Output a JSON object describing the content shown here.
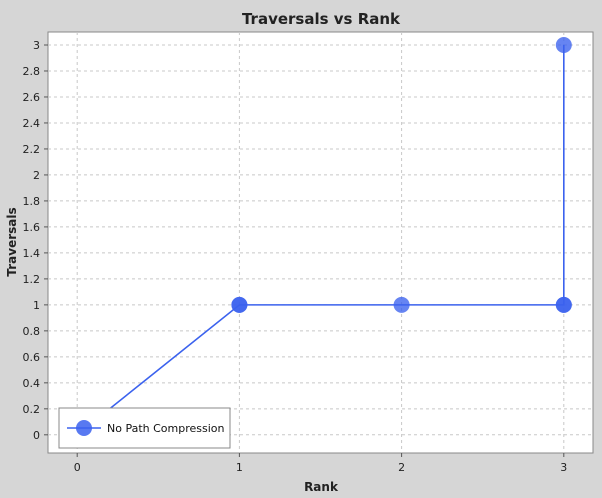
{
  "chart_data": {
    "type": "line",
    "title": "Traversals vs Rank",
    "xlabel": "Rank",
    "ylabel": "Traversals",
    "xlim": [
      -0.18,
      3.18
    ],
    "ylim": [
      -0.14,
      3.1
    ],
    "x_ticks": [
      0,
      1,
      2,
      3
    ],
    "y_ticks": [
      0,
      0.2,
      0.4,
      0.6,
      0.8,
      1,
      1.2,
      1.4,
      1.6,
      1.8,
      2,
      2.2,
      2.4,
      2.6,
      2.8,
      3
    ],
    "grid": true,
    "legend_position": "bottom-left",
    "series": [
      {
        "name": "No Path Compression",
        "color": "#3b62ee",
        "points": [
          {
            "x": 0,
            "y": 0
          },
          {
            "x": 1,
            "y": 1
          },
          {
            "x": 1,
            "y": 1
          },
          {
            "x": 2,
            "y": 1
          },
          {
            "x": 3,
            "y": 1
          },
          {
            "x": 3,
            "y": 3
          },
          {
            "x": 3,
            "y": 1
          }
        ]
      }
    ],
    "colors": {
      "background": "#d6d6d6",
      "plot_background": "#ffffff",
      "grid": "#c8c8c8",
      "axis": "#555555"
    }
  }
}
